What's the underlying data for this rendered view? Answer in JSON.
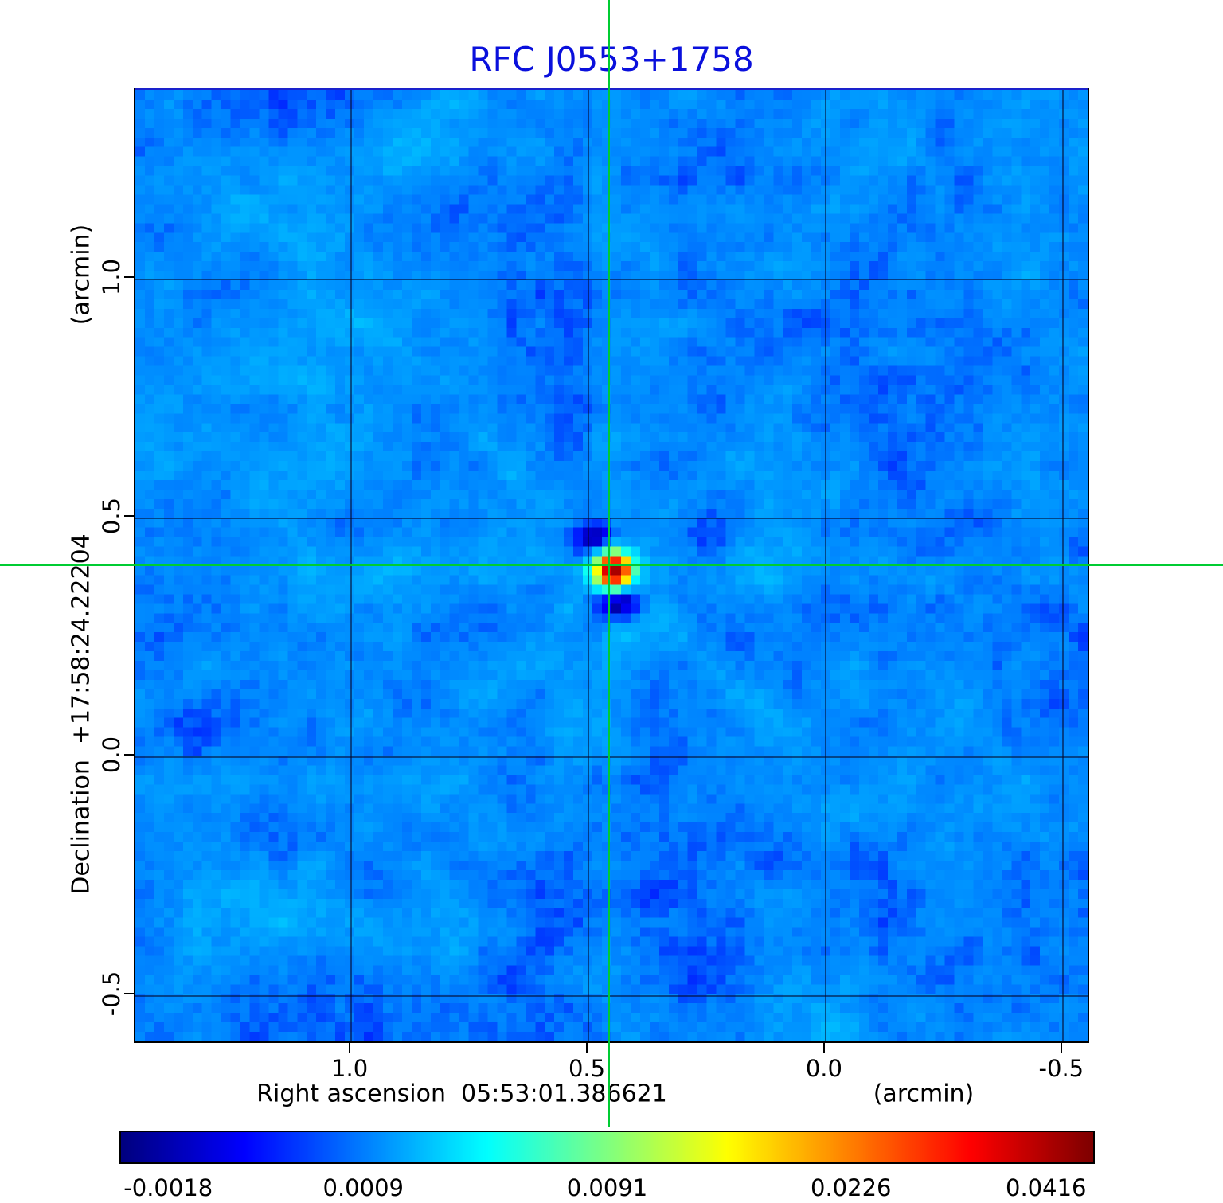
{
  "title": "RFC J0553+1758",
  "axes": {
    "y_unit": "(arcmin)",
    "y_label": "Declination  +17:58:24.22204",
    "x_label": "Right ascension  05:53:01.386621",
    "x_unit": "(arcmin)",
    "x_ticks": [
      "1.0",
      "0.5",
      "0.0",
      "-0.5"
    ],
    "y_ticks": [
      "1.0",
      "0.5",
      "0.0",
      "-0.5"
    ]
  },
  "colorbar": {
    "labels": [
      "-0.0018",
      "0.0009",
      "0.0091",
      "0.0226",
      "0.0416"
    ],
    "colormap": "jet"
  },
  "chart_data": {
    "type": "heatmap",
    "title": "RFC J0553+1758",
    "xlabel": "Right ascension 05:53:01.386621 (arcmin)",
    "ylabel": "Declination +17:58:24.22204 (arcmin)",
    "colormap": "jet",
    "grid": true,
    "x_range_arcmin": [
      1.455,
      -0.559
    ],
    "y_range_arcmin": [
      1.397,
      -0.603
    ],
    "x_tick_values": [
      1.0,
      0.5,
      0.0,
      -0.5
    ],
    "y_tick_values": [
      1.0,
      0.5,
      0.0,
      -0.5
    ],
    "crosshair_arcmin": {
      "ra_offset": 0.453,
      "dec_offset": 0.397
    },
    "source": {
      "ra_offset_arcmin": 0.453,
      "dec_offset_arcmin": 0.397,
      "peak_intensity": 0.0416
    },
    "colorbar_ticks": [
      -0.0018,
      0.0009,
      0.0091,
      0.0226,
      0.0416
    ],
    "intensity_min": -0.0018,
    "intensity_max": 0.0416,
    "background_rms": 0.0009
  },
  "render": {
    "seed": 1337,
    "grid_n": 100,
    "background_mean": 0.0013,
    "background_scale": 0.0012,
    "peak_amplitude": 0.045,
    "source_sigma_cells": 1.15,
    "value_to_t_anchors": [
      [
        -0.003,
        0.0
      ],
      [
        -0.0018,
        0.05
      ],
      [
        0.0009,
        0.25
      ],
      [
        0.0091,
        0.5
      ],
      [
        0.0226,
        0.75
      ],
      [
        0.0416,
        0.95
      ],
      [
        0.055,
        1.0
      ]
    ],
    "crosshair_color": "#00cc33",
    "title_color": "#0a10dc"
  }
}
